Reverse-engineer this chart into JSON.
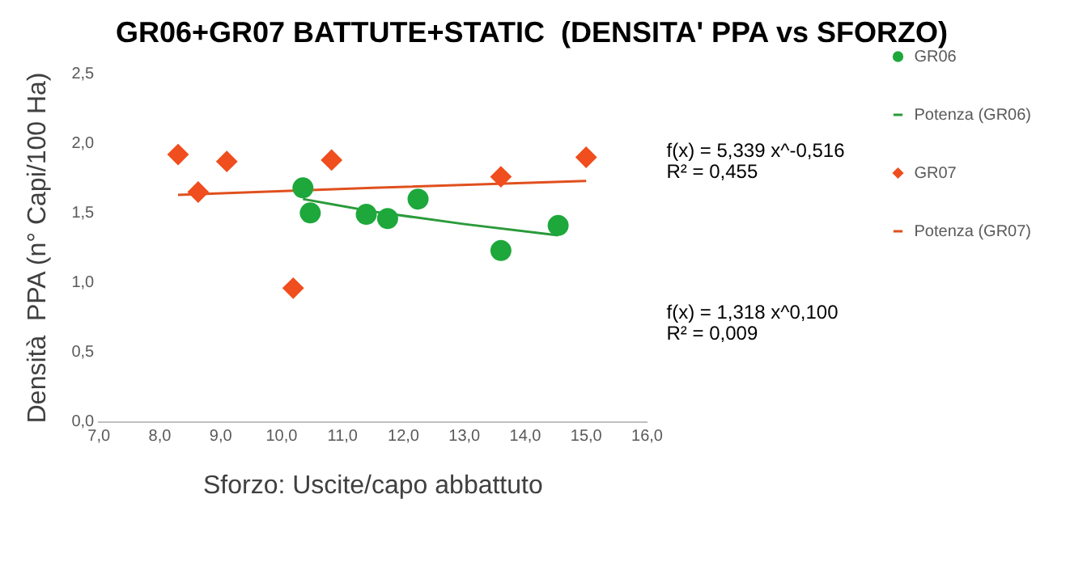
{
  "chart_data": {
    "type": "scatter",
    "title": "GR06+GR07 BATTUTE+STATIC  (DENSITA' PPA vs SFORZO)",
    "xlabel": "Sforzo: Uscite/capo abbattuto",
    "ylabel": "Densità  PPA (n° Capi/100 Ha)",
    "xlim": [
      7,
      16
    ],
    "xticks": [
      {
        "value": 7,
        "label": "7,0"
      },
      {
        "value": 8,
        "label": "8,0"
      },
      {
        "value": 9,
        "label": "9,0"
      },
      {
        "value": 10,
        "label": "10,0"
      },
      {
        "value": 11,
        "label": "11,0"
      },
      {
        "value": 12,
        "label": "12,0"
      },
      {
        "value": 13,
        "label": "13,0"
      },
      {
        "value": 14,
        "label": "14,0"
      },
      {
        "value": 15,
        "label": "15,0"
      },
      {
        "value": 16,
        "label": "16,0"
      }
    ],
    "ylim": [
      0,
      2.5
    ],
    "yticks": [
      {
        "value": 0,
        "label": "0,0"
      },
      {
        "value": 0.5,
        "label": "0,5"
      },
      {
        "value": 1,
        "label": "1,0"
      },
      {
        "value": 1.5,
        "label": "1,5"
      },
      {
        "value": 2,
        "label": "2,0"
      },
      {
        "value": 2.5,
        "label": "2,5"
      }
    ],
    "grid": false,
    "legend": "right",
    "annotations": [
      "f(x) = 5,339 x^-0,516\nR² = 0,455",
      "f(x) = 1,318 x^0,100\nR² = 0,009"
    ],
    "series": [
      {
        "name": "GR06",
        "type": "scatter",
        "marker": "circle",
        "color": "#1ea83c",
        "x": [
          10.35,
          10.47,
          11.39,
          11.74,
          12.24,
          13.6,
          14.54
        ],
        "values": [
          1.68,
          1.5,
          1.49,
          1.46,
          1.6,
          1.23,
          1.41
        ]
      },
      {
        "name": "Potenza (GR06)",
        "type": "line",
        "marker": "none",
        "color": "#2a9a3a",
        "x": [
          10.35,
          11.5,
          13,
          14.54
        ],
        "values": [
          1.6,
          1.51,
          1.42,
          1.34
        ]
      },
      {
        "name": "GR07",
        "type": "scatter",
        "marker": "diamond",
        "color": "#f04e1e",
        "x": [
          8.3,
          8.63,
          9.1,
          10.19,
          10.82,
          13.6,
          15
        ],
        "values": [
          1.92,
          1.65,
          1.87,
          0.96,
          1.88,
          1.76,
          1.9
        ]
      },
      {
        "name": "Potenza (GR07)",
        "type": "line",
        "marker": "none",
        "color": "#e0501e",
        "x": [
          8.3,
          11.5,
          15
        ],
        "values": [
          1.63,
          1.68,
          1.73
        ]
      }
    ]
  }
}
